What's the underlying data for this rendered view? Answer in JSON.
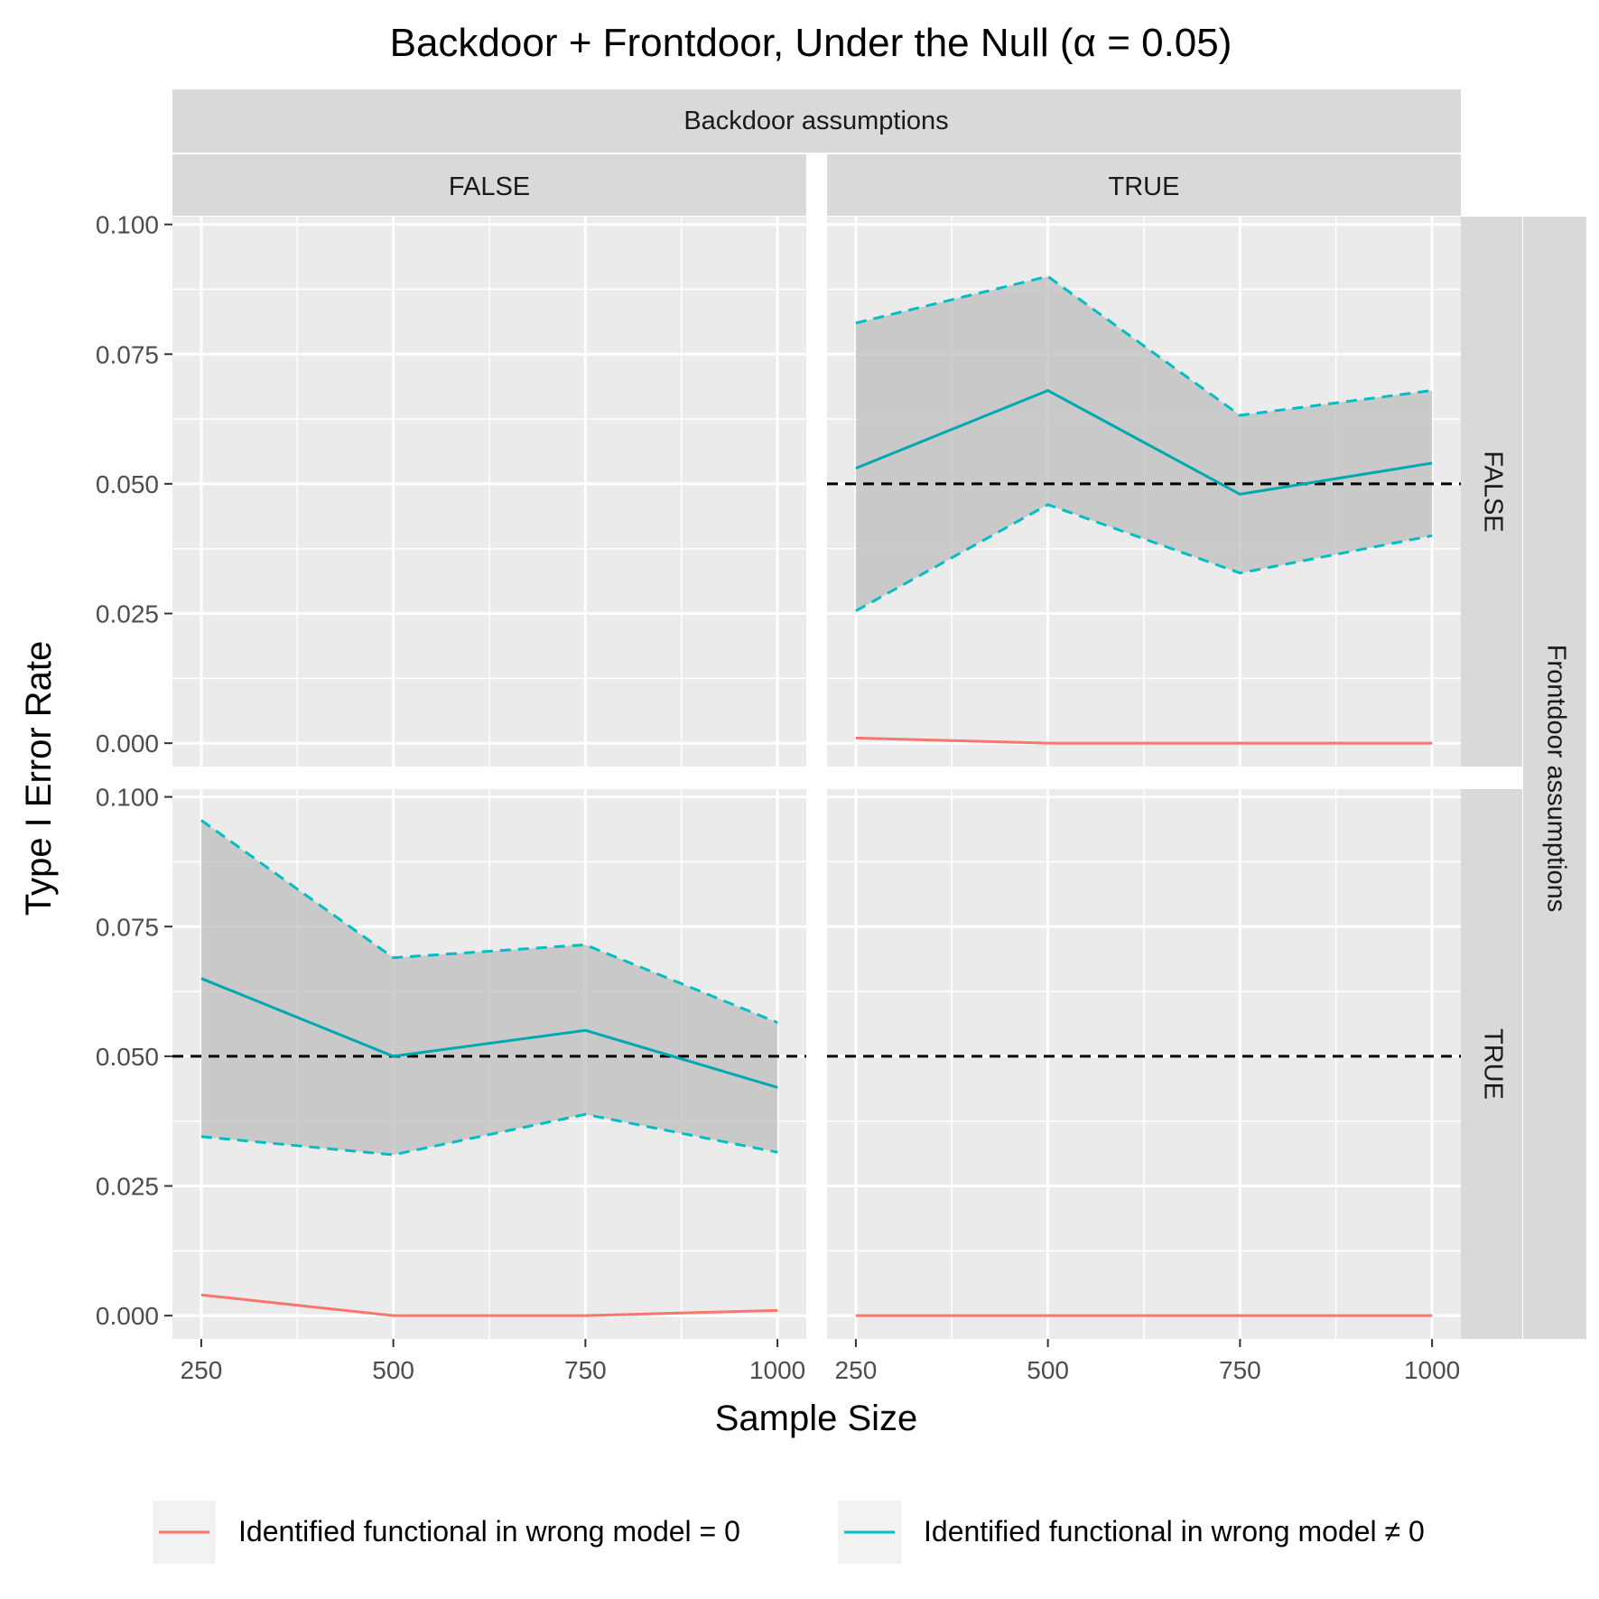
{
  "chart_data": {
    "type": "line",
    "title": "Backdoor + Frontdoor, Under the Null (α = 0.05)",
    "xlabel": "Sample Size",
    "ylabel": "Type I Error Rate",
    "x_ticks": [
      250,
      500,
      750,
      1000
    ],
    "x_tick_labels": [
      "250",
      "500",
      "750",
      "1000"
    ],
    "y_ticks": [
      0,
      0.025,
      0.05,
      0.075,
      0.1
    ],
    "y_tick_labels": [
      "0.000",
      "0.025",
      "0.050",
      "0.075",
      "0.100"
    ],
    "xlim": [
      212.5,
      1037.5
    ],
    "ylim": [
      -0.0045,
      0.1015
    ],
    "reference_line": 0.05,
    "grid": true,
    "legend_position": "bottom",
    "facet_col_title": "Backdoor assumptions",
    "facet_row_title": "Frontdoor assumptions",
    "col_labels": [
      "FALSE",
      "TRUE"
    ],
    "row_labels": [
      "FALSE",
      "TRUE"
    ],
    "legend": [
      {
        "key": "zero",
        "label": "Identified functional in wrong model = 0",
        "color": "#F8766D"
      },
      {
        "key": "nonzero",
        "label": "Identified functional in wrong model ≠ 0",
        "color": "#00BFC4"
      }
    ],
    "ribbon_color": "#BEBEBE",
    "mean_line_color": "#00A8B0",
    "panels": [
      {
        "row": 0,
        "col": 0,
        "series": []
      },
      {
        "row": 0,
        "col": 1,
        "x": [
          250,
          500,
          750,
          1000
        ],
        "zero": [
          0.001,
          0.0,
          0.0,
          0.0
        ],
        "nonzero_mean": [
          0.053,
          0.068,
          0.048,
          0.054
        ],
        "nonzero_lower": [
          0.0255,
          0.046,
          0.0328,
          0.04
        ],
        "nonzero_upper": [
          0.081,
          0.09,
          0.0632,
          0.068
        ]
      },
      {
        "row": 1,
        "col": 0,
        "x": [
          250,
          500,
          750,
          1000
        ],
        "zero": [
          0.004,
          0.0,
          0.0,
          0.001
        ],
        "nonzero_mean": [
          0.065,
          0.05,
          0.055,
          0.044
        ],
        "nonzero_lower": [
          0.0345,
          0.031,
          0.0388,
          0.0315
        ],
        "nonzero_upper": [
          0.0955,
          0.069,
          0.0715,
          0.0565
        ]
      },
      {
        "row": 1,
        "col": 1,
        "x": [
          250,
          500,
          750,
          1000
        ],
        "zero": [
          0.0,
          0.0,
          0.0,
          0.0
        ]
      }
    ]
  }
}
